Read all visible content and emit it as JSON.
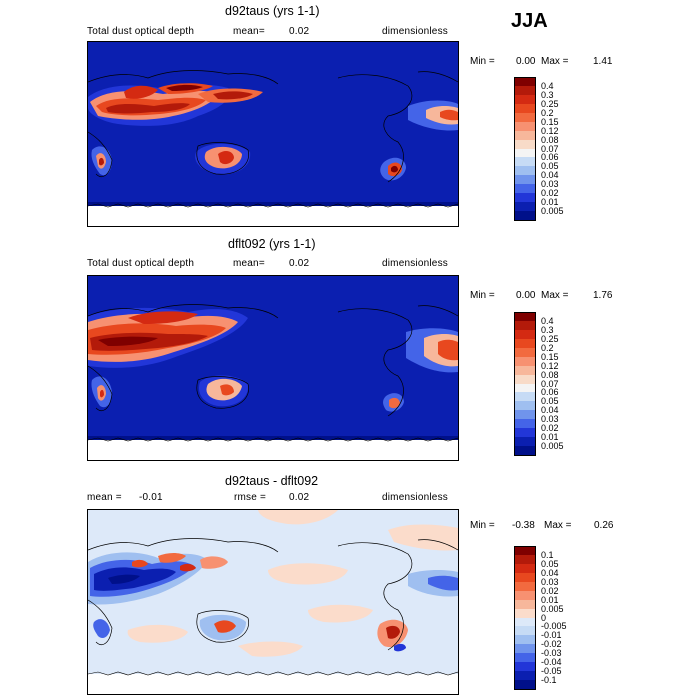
{
  "season": "JJA",
  "panels": [
    {
      "title": "d92taus (yrs 1-1)",
      "variable": "Total dust optical depth",
      "mean_label": "mean=",
      "mean_value": "0.02",
      "units": "dimensionless",
      "min_label": "Min =",
      "min_value": "0.00",
      "max_label": "Max =",
      "max_value": "1.41"
    },
    {
      "title": "dflt092 (yrs 1-1)",
      "variable": "Total dust optical depth",
      "mean_label": "mean=",
      "mean_value": "0.02",
      "units": "dimensionless",
      "min_label": "Min =",
      "min_value": "0.00",
      "max_label": "Max =",
      "max_value": "1.76"
    },
    {
      "title": "d92taus - dflt092",
      "mean_label": "mean =",
      "mean_value": "-0.01",
      "rmse_label": "rmse =",
      "rmse_value": "0.02",
      "units": "dimensionless",
      "min_label": "Min =",
      "min_value": "-0.38",
      "max_label": "Max =",
      "max_value": "0.26"
    }
  ],
  "colorbars": {
    "abs": {
      "labels": [
        "0.4",
        "0.3",
        "0.25",
        "0.2",
        "0.15",
        "0.12",
        "0.08",
        "0.07",
        "0.06",
        "0.05",
        "0.04",
        "0.03",
        "0.02",
        "0.01",
        "0.005"
      ],
      "colors": [
        "#7f0000",
        "#b31a0a",
        "#d42a12",
        "#e8481f",
        "#f26a3f",
        "#f79171",
        "#f7b79b",
        "#f8dbc8",
        "#f4f4f4",
        "#c6dbf5",
        "#9fbff0",
        "#7094ec",
        "#4464e8",
        "#2236d8",
        "#0b1fb0",
        "#00108a"
      ]
    },
    "diff": {
      "labels": [
        "0.1",
        "0.05",
        "0.04",
        "0.03",
        "0.02",
        "0.01",
        "0.005",
        "0",
        "-0.005",
        "-0.01",
        "-0.02",
        "-0.03",
        "-0.04",
        "-0.05",
        "-0.1"
      ],
      "colors": [
        "#7f0000",
        "#b31a0a",
        "#d42a12",
        "#e8481f",
        "#f26a3f",
        "#f79171",
        "#f7b79b",
        "#fbdccb",
        "#dde9f9",
        "#c6dbf5",
        "#9fbff0",
        "#7094ec",
        "#4464e8",
        "#2236d8",
        "#0b1fb0",
        "#00108a"
      ]
    }
  }
}
